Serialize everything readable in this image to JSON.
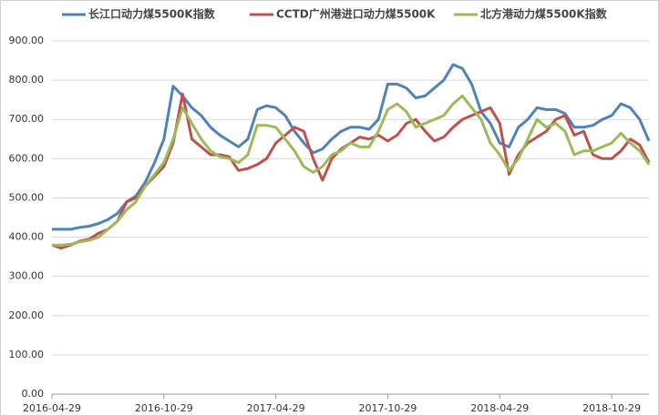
{
  "chart_data": {
    "type": "line",
    "categories": [
      "2016-04-29",
      null,
      null,
      null,
      null,
      null,
      null,
      null,
      null,
      null,
      null,
      null,
      "2016-10-29",
      null,
      null,
      null,
      null,
      null,
      null,
      null,
      null,
      null,
      null,
      null,
      "2017-04-29",
      null,
      null,
      null,
      null,
      null,
      null,
      null,
      null,
      null,
      null,
      null,
      "2017-10-29",
      null,
      null,
      null,
      null,
      null,
      null,
      null,
      null,
      null,
      null,
      null,
      "2018-04-29",
      null,
      null,
      null,
      null,
      null,
      null,
      null,
      null,
      null,
      null,
      null,
      "2018-10-29",
      null,
      null,
      null,
      null
    ],
    "series": [
      {
        "name": "长江口动力煤5500K指数",
        "color": "#4f81bd",
        "values": [
          420,
          420,
          420,
          425,
          428,
          435,
          445,
          460,
          490,
          505,
          540,
          590,
          650,
          785,
          760,
          730,
          710,
          680,
          660,
          645,
          630,
          650,
          725,
          735,
          730,
          710,
          670,
          640,
          615,
          625,
          650,
          670,
          680,
          680,
          675,
          700,
          790,
          790,
          780,
          755,
          760,
          780,
          800,
          840,
          830,
          790,
          720,
          690,
          640,
          630,
          680,
          700,
          730,
          725,
          725,
          715,
          680,
          680,
          685,
          700,
          710,
          740,
          730,
          700,
          645
        ]
      },
      {
        "name": "CCTD广州港进口动力煤5500K",
        "color": "#c0504d",
        "values": [
          380,
          372,
          380,
          390,
          395,
          410,
          420,
          440,
          490,
          500,
          530,
          555,
          580,
          640,
          765,
          650,
          630,
          610,
          610,
          605,
          570,
          575,
          585,
          600,
          640,
          660,
          680,
          670,
          600,
          545,
          600,
          625,
          640,
          655,
          650,
          660,
          645,
          660,
          690,
          700,
          670,
          645,
          655,
          680,
          700,
          710,
          720,
          730,
          690,
          560,
          610,
          640,
          655,
          670,
          700,
          710,
          660,
          670,
          610,
          600,
          600,
          620,
          650,
          635,
          590
        ]
      },
      {
        "name": "北方港动力煤5500K指数",
        "color": "#9bbb59",
        "values": [
          380,
          380,
          382,
          388,
          392,
          400,
          420,
          440,
          470,
          490,
          530,
          560,
          590,
          650,
          730,
          690,
          650,
          620,
          605,
          600,
          590,
          610,
          685,
          685,
          680,
          650,
          620,
          580,
          565,
          580,
          610,
          620,
          640,
          630,
          630,
          670,
          725,
          740,
          720,
          680,
          690,
          700,
          710,
          740,
          760,
          730,
          700,
          640,
          610,
          570,
          600,
          650,
          700,
          680,
          690,
          670,
          610,
          620,
          620,
          630,
          640,
          665,
          640,
          620,
          585
        ]
      }
    ],
    "ylim": [
      0,
      900
    ],
    "yticks": [
      {
        "value": 0,
        "label": "0.00"
      },
      {
        "value": 100,
        "label": "100.00"
      },
      {
        "value": 200,
        "label": "200.00"
      },
      {
        "value": 300,
        "label": "300.00"
      },
      {
        "value": 400,
        "label": "400.00"
      },
      {
        "value": 500,
        "label": "500.00"
      },
      {
        "value": 600,
        "label": "600.00"
      },
      {
        "value": 700,
        "label": "700.00"
      },
      {
        "value": 800,
        "label": "800.00"
      },
      {
        "value": 900,
        "label": "900.00"
      }
    ],
    "grid": true,
    "legend": "top"
  }
}
